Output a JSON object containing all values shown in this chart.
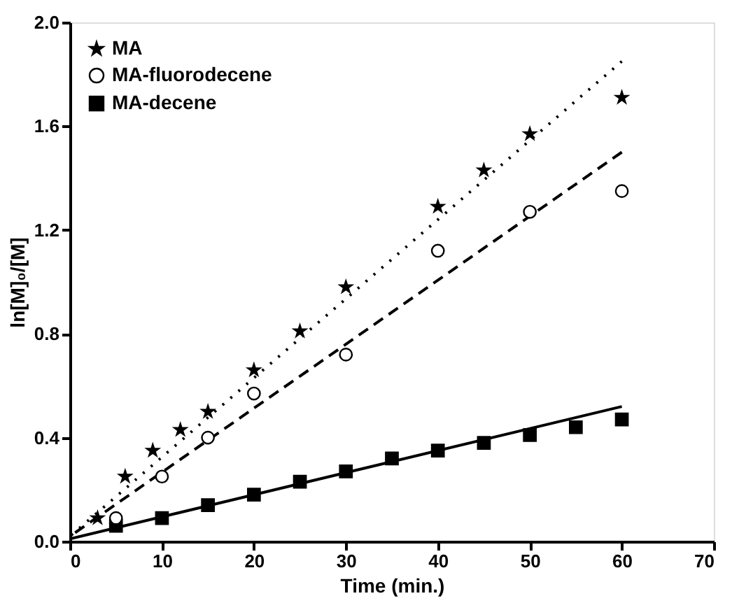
{
  "chart_data": {
    "type": "scatter",
    "xlabel": "Time (min.)",
    "ylabel": "ln[M]₀/[M]",
    "xlim": [
      0,
      70
    ],
    "xticks": [
      0,
      10,
      20,
      30,
      40,
      50,
      60,
      70
    ],
    "ylim": [
      0,
      2.0
    ],
    "yticks": [
      {
        "value": 0,
        "label": "0.0"
      },
      {
        "value": 0.4,
        "label": "0.4"
      },
      {
        "value": 0.8,
        "label": "0.8"
      },
      {
        "value": 1.2,
        "label": "1.2"
      },
      {
        "value": 1.6,
        "label": "1.6"
      },
      {
        "value": 2.0,
        "label": "2.0"
      }
    ],
    "grid": false,
    "legend": "top left",
    "series": [
      {
        "name": "MA",
        "color": "#000000",
        "marker": "star",
        "x": [
          3,
          6,
          9,
          12,
          15,
          20,
          25,
          30,
          40,
          45,
          50,
          60
        ],
        "values": [
          0.09,
          0.25,
          0.35,
          0.43,
          0.5,
          0.66,
          0.81,
          0.98,
          1.29,
          1.43,
          1.57,
          1.71
        ]
      },
      {
        "name": "MA-fluorodecene",
        "color": "#000000",
        "marker": "circle",
        "x": [
          5,
          10,
          15,
          20,
          30,
          40,
          50,
          60
        ],
        "values": [
          0.09,
          0.25,
          0.4,
          0.57,
          0.72,
          1.12,
          1.27,
          1.35
        ]
      },
      {
        "name": "MA-decene",
        "color": "#000000",
        "marker": "square",
        "x": [
          5,
          10,
          15,
          20,
          25,
          30,
          35,
          40,
          45,
          50,
          55,
          60
        ],
        "values": [
          0.06,
          0.09,
          0.14,
          0.18,
          0.23,
          0.27,
          0.32,
          0.35,
          0.38,
          0.41,
          0.44,
          0.47
        ]
      },
      {
        "type": "line",
        "color": "#000000",
        "marker": "none",
        "line_style": "dotted",
        "x": [
          0,
          60
        ],
        "values": [
          0.02,
          1.85
        ]
      },
      {
        "type": "line",
        "color": "#000000",
        "marker": "none",
        "line_style": "dashed",
        "x": [
          0,
          60
        ],
        "values": [
          0.02,
          1.5
        ]
      },
      {
        "type": "line",
        "color": "#000000",
        "marker": "none",
        "line_style": "solid",
        "x": [
          0,
          60
        ],
        "values": [
          0.01,
          0.52
        ]
      }
    ]
  }
}
